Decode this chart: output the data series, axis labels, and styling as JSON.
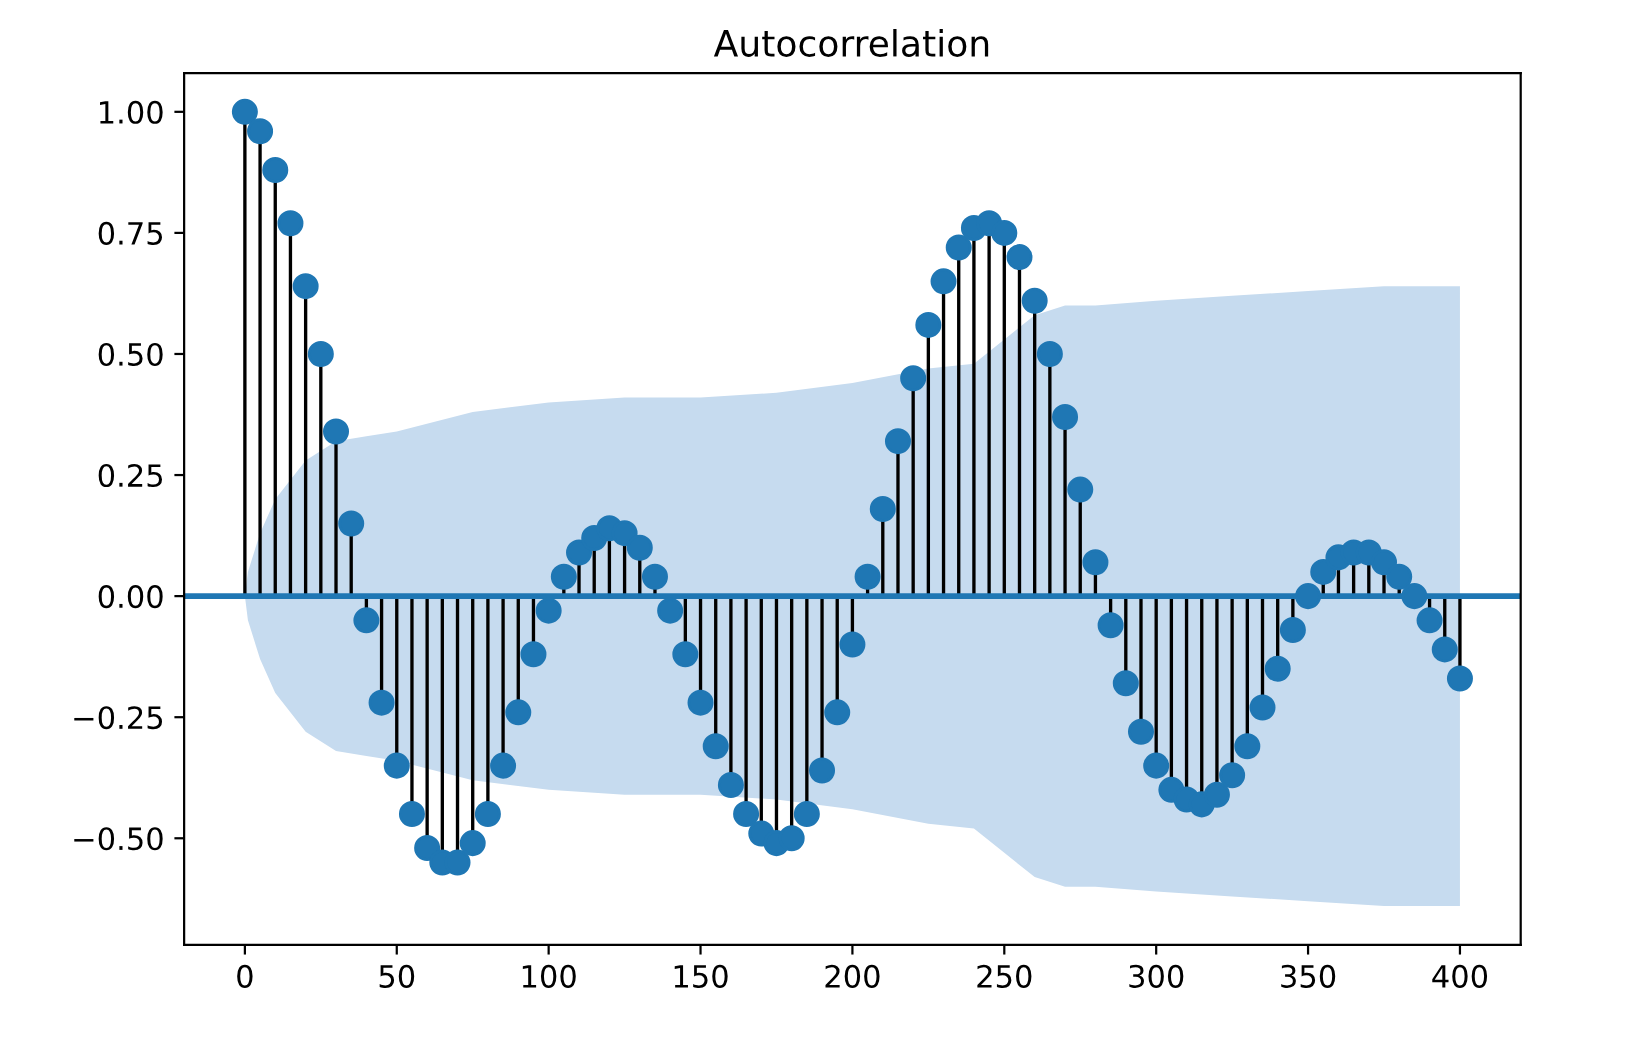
{
  "chart_data": {
    "type": "lollipop",
    "title": "Autocorrelation",
    "xlim": [
      -20,
      420
    ],
    "ylim": [
      -0.72,
      1.08
    ],
    "xticks": [
      0,
      50,
      100,
      150,
      200,
      250,
      300,
      350,
      400
    ],
    "yticks": [
      {
        "value": -0.5,
        "label": "−0.50"
      },
      {
        "value": -0.25,
        "label": "−0.25"
      },
      {
        "value": 0,
        "label": "0.00"
      },
      {
        "value": 0.25,
        "label": "0.25"
      },
      {
        "value": 0.5,
        "label": "0.50"
      },
      {
        "value": 0.75,
        "label": "0.75"
      },
      {
        "value": 1.0,
        "label": "1.00"
      }
    ],
    "grid": false,
    "marker": "circle",
    "ref_lines": [
      {
        "axis": "y",
        "value": 0,
        "color": "#1f77b4"
      }
    ],
    "series": [
      {
        "color": "#1f77b4",
        "x": [
          0,
          5,
          10,
          15,
          20,
          25,
          30,
          35,
          40,
          45,
          50,
          55,
          60,
          65,
          70,
          75,
          80,
          85,
          90,
          95,
          100,
          105,
          110,
          115,
          120,
          125,
          130,
          135,
          140,
          145,
          150,
          155,
          160,
          165,
          170,
          175,
          180,
          185,
          190,
          195,
          200,
          205,
          210,
          215,
          220,
          225,
          230,
          235,
          240,
          245,
          250,
          255,
          260,
          265,
          270,
          275,
          280,
          285,
          290,
          295,
          300,
          305,
          310,
          315,
          320,
          325,
          330,
          335,
          340,
          345,
          350,
          355,
          360,
          365,
          370,
          375,
          380,
          385,
          390,
          395,
          400
        ],
        "values": [
          1.0,
          0.96,
          0.88,
          0.77,
          0.64,
          0.5,
          0.34,
          0.15,
          -0.05,
          -0.22,
          -0.35,
          -0.45,
          -0.52,
          -0.55,
          -0.55,
          -0.51,
          -0.45,
          -0.35,
          -0.24,
          -0.12,
          -0.03,
          0.04,
          0.09,
          0.12,
          0.14,
          0.13,
          0.1,
          0.04,
          -0.03,
          -0.12,
          -0.22,
          -0.31,
          -0.39,
          -0.45,
          -0.49,
          -0.51,
          -0.5,
          -0.45,
          -0.36,
          -0.24,
          -0.1,
          0.04,
          0.18,
          0.32,
          0.45,
          0.56,
          0.65,
          0.72,
          0.76,
          0.77,
          0.75,
          0.7,
          0.61,
          0.5,
          0.37,
          0.22,
          0.07,
          -0.06,
          -0.18,
          -0.28,
          -0.35,
          -0.4,
          -0.42,
          -0.43,
          -0.41,
          -0.37,
          -0.31,
          -0.23,
          -0.15,
          -0.07,
          0.0,
          0.05,
          0.08,
          0.09,
          0.09,
          0.07,
          0.04,
          0.0,
          -0.05,
          -0.11,
          -0.17
        ]
      },
      {
        "type": "line",
        "color": "#c6dbef",
        "x": [
          0,
          1,
          5,
          10,
          20,
          30,
          40,
          50,
          75,
          100,
          125,
          150,
          175,
          200,
          225,
          240,
          250,
          260,
          270,
          280,
          300,
          325,
          350,
          375,
          400
        ],
        "values": [
          null,
          null,
          null,
          null,
          null,
          null,
          null,
          null,
          null,
          null,
          null,
          null,
          null,
          null,
          null,
          null,
          null,
          null,
          null,
          null,
          null,
          null,
          null,
          null,
          null
        ],
        "upper": [
          0,
          0.05,
          0.13,
          0.2,
          0.28,
          0.32,
          0.33,
          0.34,
          0.38,
          0.4,
          0.41,
          0.41,
          0.42,
          0.44,
          0.47,
          0.48,
          0.53,
          0.58,
          0.6,
          0.6,
          0.61,
          0.62,
          0.63,
          0.64,
          0.64
        ],
        "lower": [
          0,
          -0.05,
          -0.13,
          -0.2,
          -0.28,
          -0.32,
          -0.33,
          -0.34,
          -0.38,
          -0.4,
          -0.41,
          -0.41,
          -0.42,
          -0.44,
          -0.47,
          -0.48,
          -0.53,
          -0.58,
          -0.6,
          -0.6,
          -0.61,
          -0.62,
          -0.63,
          -0.64,
          -0.64
        ]
      }
    ]
  }
}
